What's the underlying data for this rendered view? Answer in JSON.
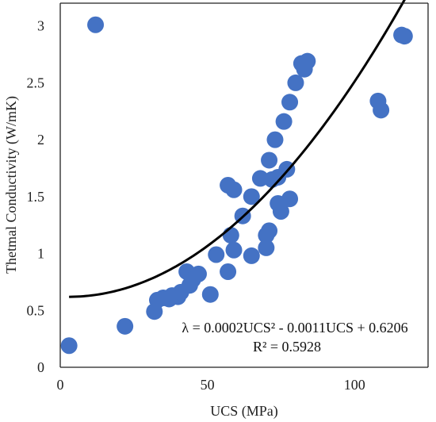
{
  "chart_data": {
    "type": "scatter",
    "xlabel": "UCS (MPa)",
    "ylabel": "Thetmal Conductivity (W/mK)",
    "xlim": [
      0,
      125
    ],
    "ylim": [
      0,
      3.2
    ],
    "xticks": [
      0,
      50,
      100
    ],
    "yticks": [
      0,
      0.5,
      1,
      1.5,
      2,
      2.5,
      3
    ],
    "grid": false,
    "legend": "none",
    "marker_color": "#4472C4",
    "trendline_color": "#000000",
    "points": [
      {
        "x": 3,
        "y": 0.19
      },
      {
        "x": 12,
        "y": 3.01
      },
      {
        "x": 22,
        "y": 0.36
      },
      {
        "x": 32,
        "y": 0.49
      },
      {
        "x": 33,
        "y": 0.59
      },
      {
        "x": 35,
        "y": 0.61
      },
      {
        "x": 37,
        "y": 0.6
      },
      {
        "x": 38,
        "y": 0.63
      },
      {
        "x": 40,
        "y": 0.62
      },
      {
        "x": 41,
        "y": 0.66
      },
      {
        "x": 43,
        "y": 0.84
      },
      {
        "x": 44,
        "y": 0.72
      },
      {
        "x": 45,
        "y": 0.77
      },
      {
        "x": 47,
        "y": 0.82
      },
      {
        "x": 51,
        "y": 0.64
      },
      {
        "x": 53,
        "y": 0.99
      },
      {
        "x": 57,
        "y": 0.84
      },
      {
        "x": 57,
        "y": 1.6
      },
      {
        "x": 58,
        "y": 1.16
      },
      {
        "x": 59,
        "y": 1.03
      },
      {
        "x": 59,
        "y": 1.56
      },
      {
        "x": 62,
        "y": 1.33
      },
      {
        "x": 65,
        "y": 0.98
      },
      {
        "x": 65,
        "y": 1.5
      },
      {
        "x": 68,
        "y": 1.66
      },
      {
        "x": 70,
        "y": 1.05
      },
      {
        "x": 70,
        "y": 1.16
      },
      {
        "x": 71,
        "y": 1.2
      },
      {
        "x": 71,
        "y": 1.82
      },
      {
        "x": 72,
        "y": 1.65
      },
      {
        "x": 73,
        "y": 2.0
      },
      {
        "x": 74,
        "y": 1.67
      },
      {
        "x": 74,
        "y": 1.44
      },
      {
        "x": 75,
        "y": 1.37
      },
      {
        "x": 76,
        "y": 2.16
      },
      {
        "x": 77,
        "y": 1.74
      },
      {
        "x": 78,
        "y": 1.48
      },
      {
        "x": 78,
        "y": 2.33
      },
      {
        "x": 80,
        "y": 2.5
      },
      {
        "x": 82,
        "y": 2.67
      },
      {
        "x": 83,
        "y": 2.62
      },
      {
        "x": 84,
        "y": 2.69
      },
      {
        "x": 108,
        "y": 2.34
      },
      {
        "x": 109,
        "y": 2.26
      },
      {
        "x": 116,
        "y": 2.92
      },
      {
        "x": 117,
        "y": 2.91
      }
    ],
    "trendline": {
      "type": "polynomial",
      "a": 0.0002,
      "b": -0.0011,
      "c": 0.6206,
      "x_range": [
        3,
        118
      ]
    },
    "annotations": {
      "equation": "λ = 0.0002UCS² - 0.0011UCS + 0.6206",
      "r_squared": "R² = 0.5928"
    }
  }
}
